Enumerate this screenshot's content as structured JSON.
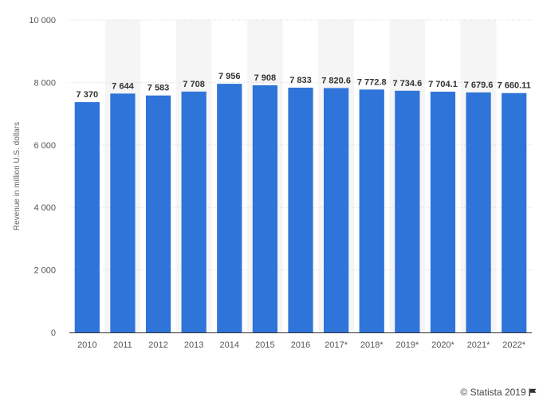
{
  "chart_data": {
    "type": "bar",
    "categories": [
      "2010",
      "2011",
      "2012",
      "2013",
      "2014",
      "2015",
      "2016",
      "2017*",
      "2018*",
      "2019*",
      "2020*",
      "2021*",
      "2022*"
    ],
    "values": [
      7370,
      7644,
      7583,
      7708,
      7956,
      7908,
      7833,
      7820.6,
      7772.8,
      7734.6,
      7704.1,
      7679.6,
      7660.11
    ],
    "value_labels": [
      "7 370",
      "7 644",
      "7 583",
      "7 708",
      "7 956",
      "7 908",
      "7 833",
      "7 820.6",
      "7 772.8",
      "7 734.6",
      "7 704.1",
      "7 679.6",
      "7 660.11"
    ],
    "ylabel": "Revenue in million U.S. dollars",
    "xlabel": "",
    "ylim": [
      0,
      10000
    ],
    "yticks": [
      0,
      2000,
      4000,
      6000,
      8000,
      10000
    ],
    "ytick_labels": [
      "0",
      "2 000",
      "4 000",
      "6 000",
      "8 000",
      "10 000"
    ],
    "grid": true,
    "bar_color": "#2f74d8",
    "band_color": "#f5f5f5"
  },
  "footer": {
    "credit": "© Statista 2019",
    "icon": "flag-icon"
  }
}
